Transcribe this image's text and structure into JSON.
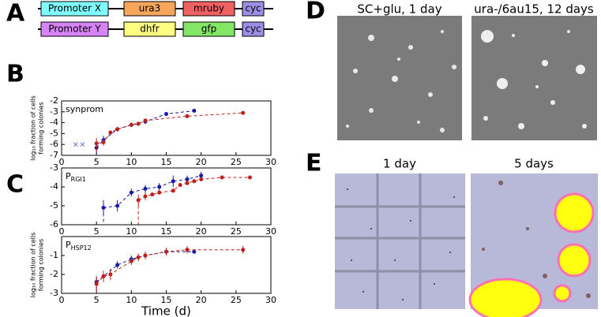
{
  "panel_letters": [
    "A",
    "B",
    "C",
    "D",
    "E"
  ],
  "constructs": [
    {
      "parts": [
        "Promoter X",
        "ura3",
        "mruby",
        "cyc"
      ],
      "colors": [
        "#80ffff",
        "#f5a65b",
        "#f06262",
        "#9d8fe6"
      ]
    },
    {
      "parts": [
        "Promoter Y",
        "dhfr",
        "gfp",
        "cyc"
      ],
      "colors": [
        "#d684f5",
        "#fdfd82",
        "#84e667",
        "#9d8fe6"
      ]
    }
  ],
  "chart_data": [
    {
      "type": "line",
      "label": "synprom",
      "ylabel": [
        "log₁₀ fraction of cells",
        "forming colonies"
      ],
      "xlim": [
        0,
        30
      ],
      "xticks": [
        0,
        5,
        10,
        15,
        20,
        25,
        30
      ],
      "ylim": [
        -7,
        -2
      ],
      "yticks": [
        -7,
        -6,
        -5,
        -4,
        -3,
        -2
      ],
      "series": [
        {
          "color": "#1a1aa6",
          "x": [
            5,
            6,
            8,
            10,
            12,
            15,
            19
          ],
          "values": [
            -6.3,
            -5.6,
            -4.6,
            -4.2,
            -3.9,
            -3.2,
            -2.9
          ],
          "errors": [
            0.5,
            0.4,
            0.2,
            0.2,
            0.2,
            0.1,
            0.1
          ]
        },
        {
          "color": "#c0201c",
          "x": [
            5,
            6,
            7,
            8,
            10,
            11,
            12,
            18,
            26
          ],
          "values": [
            -5.9,
            -5.8,
            -4.9,
            -4.6,
            -4.2,
            -4.1,
            -3.8,
            -3.4,
            -3.1
          ],
          "errors": [
            0.5,
            0.3,
            0.2,
            0.2,
            0.2,
            0.2,
            0.2,
            0.1,
            0.1
          ]
        },
        {
          "color": "#6a6ad8",
          "marker": "x",
          "x": [
            2,
            3
          ],
          "values": [
            -6,
            -6
          ]
        }
      ]
    },
    {
      "type": "line",
      "label": "P",
      "label_sub": "RGI1",
      "xlim": [
        0,
        30
      ],
      "xticks": [
        0,
        5,
        10,
        15,
        20,
        25,
        30
      ],
      "ylim": [
        -6,
        -3
      ],
      "yticks": [
        -6,
        -5,
        -4,
        -3
      ],
      "series": [
        {
          "color": "#1a1aa6",
          "x": [
            6,
            8,
            10,
            12,
            14,
            16,
            18,
            20
          ],
          "values": [
            -5.1,
            -5.0,
            -4.3,
            -4.1,
            -4.0,
            -3.7,
            -3.6,
            -3.4
          ],
          "errors": [
            0.4,
            0.3,
            0.2,
            0.2,
            0.2,
            0.3,
            0.2,
            0.2
          ]
        },
        {
          "color": "#c0201c",
          "x": [
            11,
            12,
            13,
            14,
            16,
            17,
            18,
            19,
            20,
            23,
            27
          ],
          "values": [
            -4.7,
            -4.5,
            -4.4,
            -4.3,
            -4.2,
            -3.9,
            -3.8,
            -3.7,
            -3.6,
            -3.5,
            -3.5
          ],
          "errors": [
            0.3,
            0.2,
            0.1,
            0.1,
            0.1,
            0.1,
            0.1,
            0.1,
            0.1,
            0.05,
            0.05
          ]
        }
      ]
    },
    {
      "type": "line",
      "label": "P",
      "label_sub": "HSP12",
      "ylabel": [
        "log₁₀ fraction of cells",
        "forming colonies"
      ],
      "xlabel": "Time (d)",
      "xlim": [
        0,
        30
      ],
      "xticks": [
        0,
        5,
        10,
        15,
        20,
        25,
        30
      ],
      "ylim": [
        -3,
        0
      ],
      "yticks": [
        -3,
        -2,
        -1
      ],
      "series": [
        {
          "color": "#1a1aa6",
          "x": [
            5,
            6,
            8,
            10,
            12,
            15,
            19
          ],
          "values": [
            -2.4,
            -2.1,
            -1.5,
            -1.2,
            -1.0,
            -0.8,
            -0.8
          ],
          "errors": [
            0.3,
            0.2,
            0.2,
            0.2,
            0.2,
            0.1,
            0.1
          ]
        },
        {
          "color": "#c0201c",
          "x": [
            5,
            6,
            7,
            10,
            11,
            12,
            15,
            18,
            26
          ],
          "values": [
            -2.5,
            -2.1,
            -2.0,
            -1.3,
            -1.1,
            -1.0,
            -0.8,
            -0.7,
            -0.7
          ],
          "errors": [
            0.4,
            0.3,
            0.3,
            0.2,
            0.2,
            0.2,
            0.2,
            0.2,
            0.2
          ]
        }
      ]
    }
  ],
  "photo_titles": [
    "SC+glu, 1 day",
    "ura-/6au15, 12 days",
    "1 day",
    "5 days"
  ]
}
